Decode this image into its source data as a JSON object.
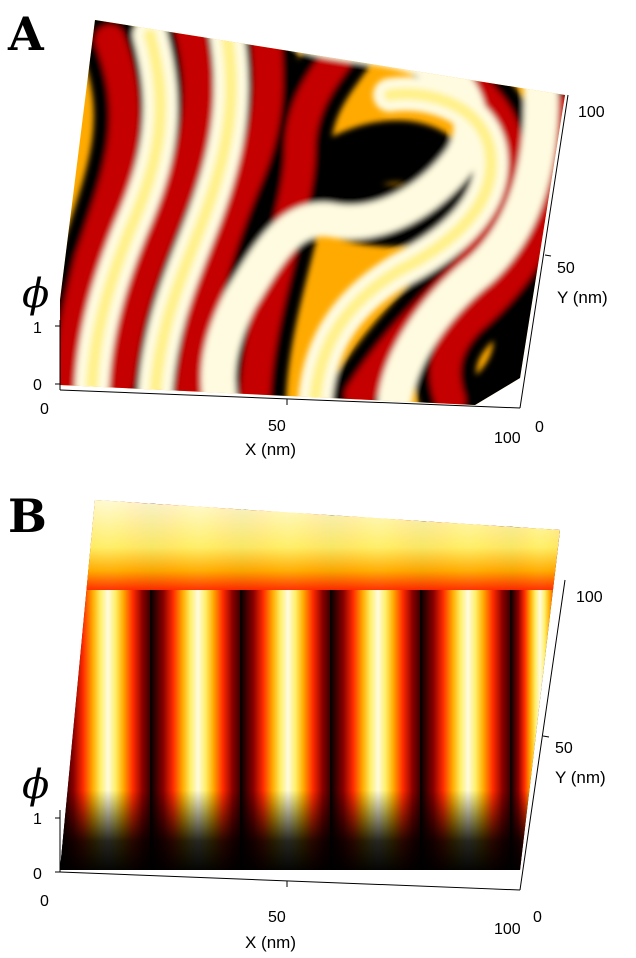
{
  "figure": {
    "panels": [
      {
        "letter": "A",
        "z_label": "ϕ",
        "z_ticks": [
          "0",
          "1"
        ],
        "x_ticks": [
          "0",
          "50",
          "100"
        ],
        "x_label": "X (nm)",
        "y_ticks": [
          "0",
          "50",
          "100"
        ],
        "y_label": "Y (nm)",
        "surface": "labyrinth-stripe-pattern"
      },
      {
        "letter": "B",
        "z_label": "ϕ",
        "z_ticks": [
          "0",
          "1"
        ],
        "x_ticks": [
          "0",
          "50",
          "100"
        ],
        "x_label": "X (nm)",
        "y_ticks": [
          "0",
          "50",
          "100"
        ],
        "y_label": "Y (nm)",
        "surface": "parallel-lamellae-pattern"
      }
    ],
    "colormap": [
      "#000000",
      "#8a0000",
      "#ff2a00",
      "#ffaa00",
      "#ffee66",
      "#fffbe0"
    ]
  }
}
